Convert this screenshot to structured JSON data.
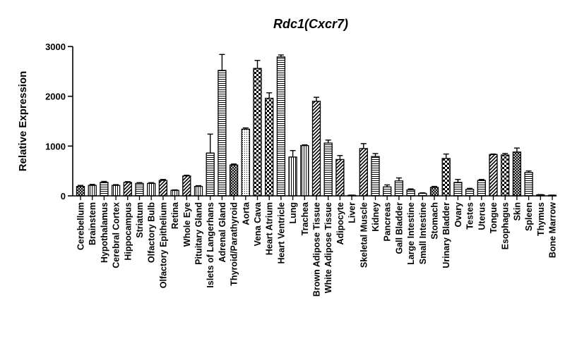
{
  "chart_data": {
    "type": "bar",
    "title": "Rdc1(Cxcr7)",
    "xlabel": "",
    "ylabel": "Relative Expression",
    "ylim": [
      0,
      3000
    ],
    "yticks": [
      0,
      1000,
      2000,
      3000
    ],
    "yticklabels": [
      "0",
      "1000",
      "2000",
      "3000"
    ],
    "categories": [
      "Cerebellum",
      "Brainstem",
      "Hypothalamus",
      "Cerebral Cortex",
      "Hippocampus",
      "Striatum",
      "Olfactory Bulb",
      "Olfactory Epithelium",
      "Retina",
      "Whole Eye",
      "Pituitary Gland",
      "Islets of Langerhans",
      "Adrenal Gland",
      "Thyroid/Parathyroid",
      "Aorta",
      "Vena Cava",
      "Heart Atrium",
      "Heart Ventricle",
      "Lung",
      "Trachea",
      "Brown Adipose Tissue",
      "White Adipose Tissue",
      "Adipocyte",
      "Liver",
      "Skeletal Muscle",
      "Kidney",
      "Pancreas",
      "Gall Bladder",
      "Large Intestine",
      "Small Intestine",
      "Stomach",
      "Urinary Bladder",
      "Ovary",
      "Testes",
      "Uterus",
      "Tongue",
      "Esophagus",
      "Skin",
      "Spleen",
      "Thymus",
      "Bone Marrow"
    ],
    "values": [
      190,
      210,
      270,
      210,
      270,
      250,
      250,
      310,
      110,
      400,
      190,
      860,
      2520,
      620,
      1340,
      2560,
      1960,
      2790,
      780,
      1010,
      1900,
      1060,
      730,
      10,
      950,
      790,
      180,
      300,
      120,
      50,
      170,
      750,
      270,
      130,
      310,
      830,
      820,
      880,
      470,
      20,
      10
    ],
    "errors": [
      20,
      20,
      20,
      15,
      15,
      15,
      15,
      20,
      10,
      15,
      15,
      380,
      320,
      20,
      25,
      160,
      110,
      40,
      130,
      15,
      80,
      60,
      80,
      5,
      100,
      60,
      40,
      60,
      20,
      10,
      20,
      90,
      60,
      20,
      20,
      10,
      30,
      80,
      30,
      5,
      5
    ],
    "patterns": [
      "cross",
      "vertical",
      "horizontal",
      "vertical",
      "diag",
      "horizontal",
      "vertical",
      "diag",
      "vertical",
      "diag",
      "vertical",
      "horizontal",
      "horizontal",
      "cross",
      "dots",
      "checker",
      "checker",
      "horizontal",
      "vertical",
      "vertical",
      "diag",
      "horizontal",
      "diag",
      "vertical",
      "diag",
      "horizontal",
      "horizontal",
      "horizontal",
      "horizontal",
      "horizontal",
      "cross",
      "checker",
      "horizontal",
      "horizontal",
      "horizontal",
      "diag",
      "checker",
      "cross",
      "horizontal",
      "horizontal",
      "vertical"
    ],
    "grid": false,
    "legend": "none"
  }
}
